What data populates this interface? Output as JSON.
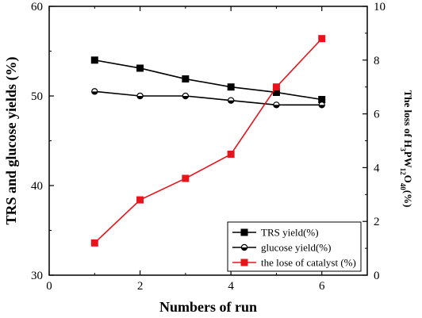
{
  "chart_data": {
    "type": "line",
    "xlabel": "Numbers of run",
    "ylabel_left": "TRS and glucose yields (%)",
    "ylabel_right": "The loss of H3PW12O40(%)",
    "ylabel_right_parts": {
      "prefix": "The loss of ",
      "H": "H",
      "sub1": "3",
      "PW": "PW",
      "sub2": "12",
      "O": "O",
      "sub3": "40",
      "suffix": "(%)"
    },
    "xlim": [
      0,
      7
    ],
    "xticks": [
      "0",
      "2",
      "4",
      "6"
    ],
    "xtick_values": [
      0,
      2,
      4,
      6
    ],
    "ylim_left": [
      30,
      60
    ],
    "yticks_left": [
      "30",
      "40",
      "50",
      "60"
    ],
    "ytick_values_left": [
      30,
      40,
      50,
      60
    ],
    "ylim_right": [
      0,
      10
    ],
    "yticks_right": [
      "0",
      "2",
      "4",
      "6",
      "8",
      "10"
    ],
    "ytick_values_right": [
      0,
      2,
      4,
      6,
      8,
      10
    ],
    "legend_position": "lower-right",
    "grid": false,
    "series": [
      {
        "name": "TRS yield(%)",
        "axis": "left",
        "color": "#000000",
        "marker": "square-filled",
        "x": [
          1,
          2,
          3,
          4,
          5,
          6
        ],
        "values": [
          54.0,
          53.1,
          51.9,
          51.0,
          50.4,
          49.6
        ]
      },
      {
        "name": "glucose yield(%)",
        "axis": "left",
        "color": "#000000",
        "marker": "circle-half",
        "x": [
          1,
          2,
          3,
          4,
          5,
          6
        ],
        "values": [
          50.5,
          50.0,
          50.0,
          49.5,
          49.0,
          49.0
        ]
      },
      {
        "name": "the lose of catalyst (%)",
        "axis": "right",
        "color": "#e8141c",
        "marker": "square-filled",
        "x": [
          1,
          2,
          3,
          4,
          5,
          6
        ],
        "values": [
          1.2,
          2.8,
          3.6,
          4.5,
          7.0,
          8.8
        ]
      }
    ]
  }
}
